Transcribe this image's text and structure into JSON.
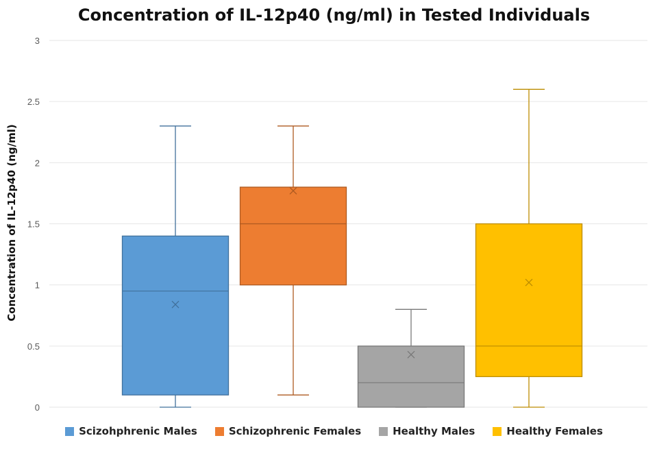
{
  "chart_data": {
    "type": "boxplot",
    "title": "Concentration of IL-12p40 (ng/ml) in Tested Individuals",
    "xlabel": "",
    "ylabel": "Concentration of IL-12p40 (ng/ml)",
    "ylim": [
      0,
      3
    ],
    "yticks": [
      "0",
      "0.5",
      "1",
      "1.5",
      "2",
      "2.5",
      "3"
    ],
    "grid": true,
    "legend_position": "bottom",
    "series": [
      {
        "name": "Scizohphrenic Males",
        "color": "#5B9BD5",
        "edge": "#41719C",
        "min": 0,
        "q1": 0.1,
        "median": 0.95,
        "q3": 1.4,
        "max": 2.3,
        "mean": 0.84
      },
      {
        "name": "Schizophrenic Females",
        "color": "#ED7D31",
        "edge": "#AE5A21",
        "min": 0.1,
        "q1": 1.0,
        "median": 1.5,
        "q3": 1.8,
        "max": 2.3,
        "mean": 1.77
      },
      {
        "name": "Healthy Males",
        "color": "#A5A5A5",
        "edge": "#787878",
        "min": 0,
        "q1": 0,
        "median": 0.2,
        "q3": 0.5,
        "max": 0.8,
        "mean": 0.43
      },
      {
        "name": "Healthy Females",
        "color": "#FFC000",
        "edge": "#BC8C00",
        "min": 0,
        "q1": 0.25,
        "median": 0.5,
        "q3": 1.5,
        "max": 2.6,
        "mean": 1.02
      }
    ]
  }
}
